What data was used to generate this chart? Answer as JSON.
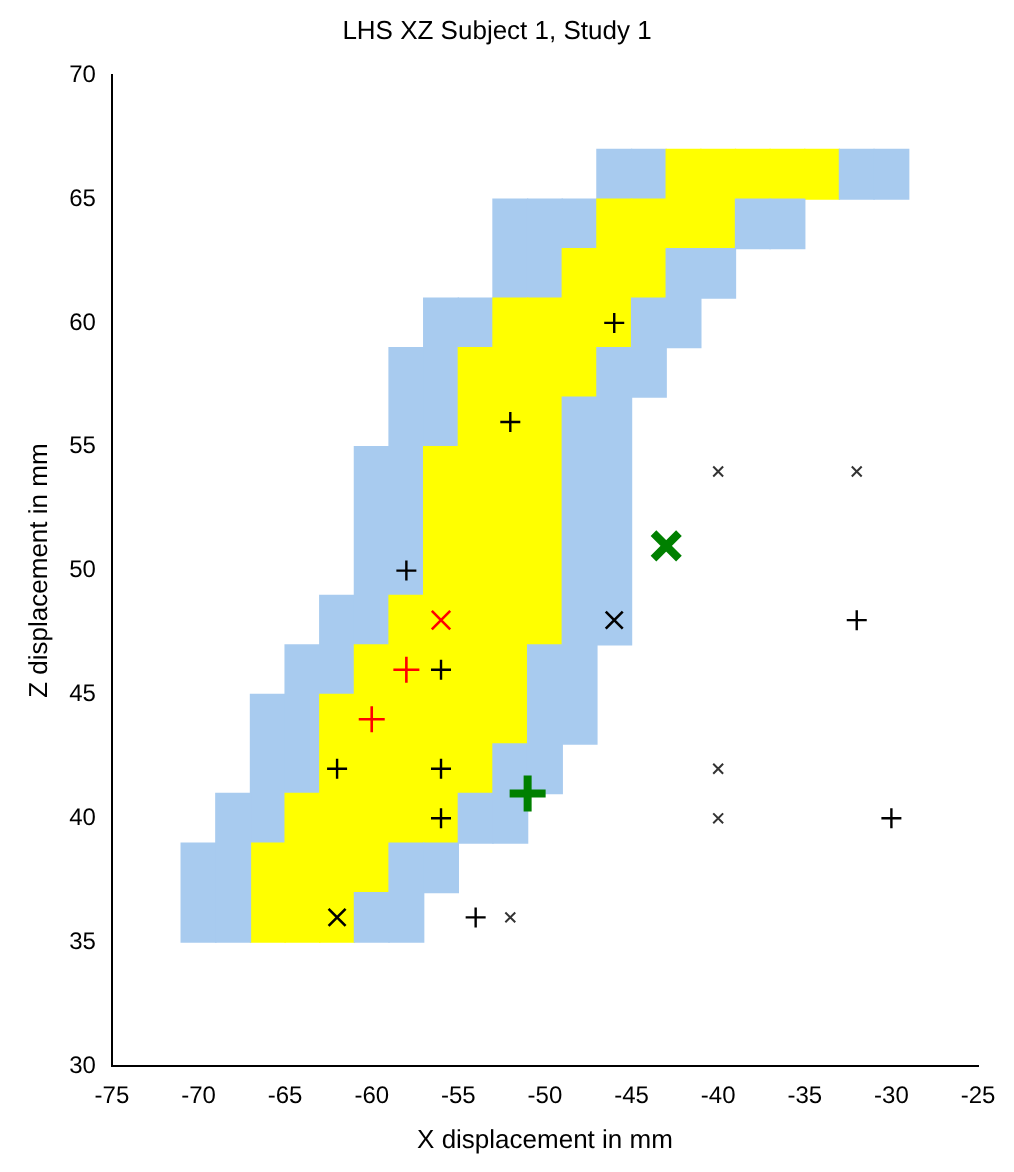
{
  "chart_data": {
    "type": "bar",
    "title": "LHS XZ Subject 1, Study 1",
    "xlabel": "X displacement in mm",
    "ylabel": "Z displacement in mm",
    "x": [
      -70,
      -68,
      -66,
      -64,
      -62,
      -60,
      -58,
      -56,
      -54,
      -52,
      -50,
      -48,
      -46,
      -44,
      -42,
      -40,
      -38,
      -36,
      -34,
      -32,
      -30
    ],
    "series": [
      {
        "color": "#a8cbef",
        "base": [
          35,
          35,
          null,
          null,
          null,
          35,
          35,
          37,
          39,
          39,
          41,
          43,
          47,
          57,
          59,
          61,
          63,
          63,
          null,
          65,
          65
        ],
        "values": [
          4,
          6,
          null,
          null,
          null,
          2,
          4,
          2,
          2,
          4,
          6,
          14,
          12,
          4,
          4,
          2,
          2,
          2,
          null,
          2,
          2
        ]
      },
      {
        "color": "#ffff00",
        "base": [
          null,
          null,
          35,
          35,
          35,
          37,
          39,
          39,
          41,
          43,
          47,
          57,
          59,
          61,
          63,
          63,
          65,
          65,
          65,
          null,
          null
        ],
        "values": [
          null,
          null,
          4,
          6,
          10,
          10,
          10,
          16,
          18,
          18,
          14,
          6,
          6,
          4,
          4,
          4,
          2,
          2,
          2,
          null,
          null
        ]
      },
      {
        "color": "#a8cbef",
        "base": [
          null,
          null,
          39,
          41,
          45,
          47,
          49,
          55,
          59,
          61,
          61,
          63,
          65,
          65,
          null,
          null,
          null,
          null,
          null,
          null,
          null
        ],
        "values": [
          null,
          null,
          6,
          6,
          4,
          8,
          10,
          6,
          2,
          4,
          4,
          2,
          2,
          2,
          null,
          null,
          null,
          null,
          null,
          null,
          null
        ]
      },
      {
        "type": "scatter",
        "marker": "cross",
        "color": "#000000",
        "x": [
          -52,
          -46,
          -58,
          -56,
          -62,
          -56,
          -56,
          -54,
          -32,
          -30
        ],
        "values": [
          56,
          60,
          50,
          46,
          42,
          42,
          40,
          36,
          48,
          40
        ]
      },
      {
        "type": "scatter",
        "marker": "cross",
        "color": "#ff0000",
        "x": [
          -58,
          -60
        ],
        "values": [
          46,
          44
        ]
      },
      {
        "type": "scatter",
        "marker": "x",
        "color": "#ff0000",
        "x": [
          -56
        ],
        "values": [
          48
        ]
      },
      {
        "type": "scatter",
        "marker": "x",
        "color": "#000000",
        "x": [
          -62,
          -46
        ],
        "values": [
          36,
          48
        ]
      },
      {
        "type": "scatter",
        "marker": "x",
        "color": "#333333",
        "x": [
          -40,
          -32,
          -40,
          -40,
          -52
        ],
        "values": [
          54,
          54,
          42,
          40,
          36
        ]
      },
      {
        "type": "scatter",
        "marker": "x",
        "color": "#008000",
        "x": [
          -43
        ],
        "values": [
          51
        ]
      },
      {
        "type": "scatter",
        "marker": "cross",
        "color": "#008000",
        "x": [
          -51
        ],
        "values": [
          41
        ]
      }
    ],
    "xlim": [
      -75,
      -25
    ],
    "xticks": [
      -75,
      -70,
      -65,
      -60,
      -55,
      -50,
      -45,
      -40,
      -35,
      -30,
      -25
    ],
    "ylim": [
      30,
      70
    ],
    "yticks": [
      30,
      35,
      40,
      45,
      50,
      55,
      60,
      65,
      70
    ]
  }
}
